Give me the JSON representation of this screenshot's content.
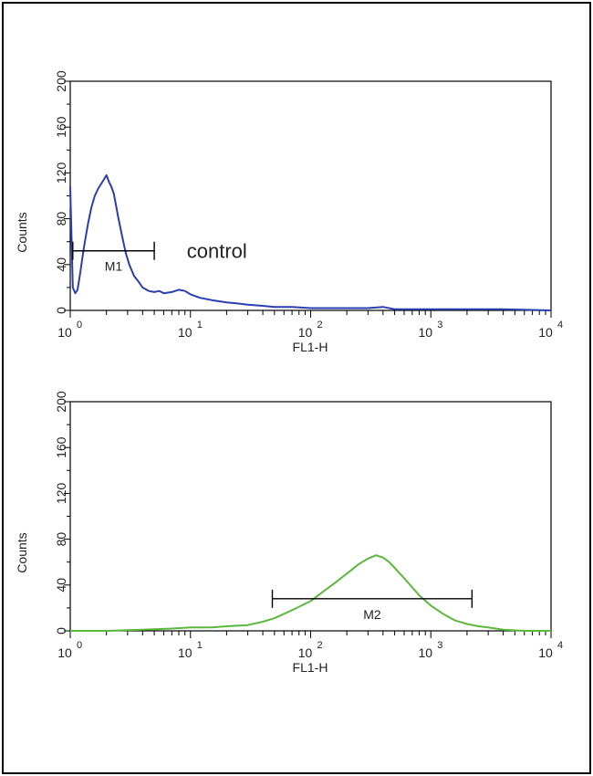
{
  "chart_data": [
    {
      "type": "line",
      "xscale": "log",
      "xlim": [
        1,
        10000
      ],
      "ylim": [
        0,
        200
      ],
      "xlabel": "FL1-H",
      "ylabel": "Counts",
      "x_ticks": [
        {
          "base": "10",
          "exp": "0"
        },
        {
          "base": "10",
          "exp": "1"
        },
        {
          "base": "10",
          "exp": "2"
        },
        {
          "base": "10",
          "exp": "3"
        },
        {
          "base": "10",
          "exp": "4"
        }
      ],
      "y_ticks": [
        "0",
        "40",
        "80",
        "120",
        "160",
        "200"
      ],
      "color": "#2a3fae",
      "series": [
        {
          "x": [
            1.0,
            1.05,
            1.1,
            1.15,
            1.2,
            1.3,
            1.4,
            1.5,
            1.6,
            1.7,
            1.8,
            1.9,
            2.0,
            2.1,
            2.2,
            2.3,
            2.4,
            2.5,
            2.7,
            2.9,
            3.1,
            3.4,
            3.7,
            4.0,
            4.5,
            5.0,
            5.5,
            6.0,
            7.0,
            8.0,
            9.0,
            10,
            12,
            15,
            20,
            25,
            30,
            40,
            50,
            70,
            100,
            150,
            200,
            300,
            400,
            500,
            700,
            1000,
            2000,
            4000,
            10000
          ],
          "y": [
            108,
            20,
            15,
            18,
            30,
            55,
            75,
            90,
            100,
            106,
            110,
            114,
            118,
            112,
            108,
            102,
            92,
            82,
            65,
            50,
            40,
            30,
            25,
            20,
            17,
            16,
            17,
            15,
            16,
            18,
            17,
            14,
            11,
            9,
            7,
            6,
            5,
            4,
            3,
            3,
            2,
            2,
            2,
            2,
            3,
            1,
            1,
            1,
            1,
            1,
            0
          ]
        }
      ],
      "annotations": [
        {
          "label": "M1",
          "x_start": 1.05,
          "x_end": 5.0,
          "y": 52
        },
        {
          "label": "control",
          "x": 10,
          "y": 52
        }
      ]
    },
    {
      "type": "line",
      "xscale": "log",
      "xlim": [
        1,
        10000
      ],
      "ylim": [
        0,
        200
      ],
      "xlabel": "FL1-H",
      "ylabel": "Counts",
      "x_ticks": [
        {
          "base": "10",
          "exp": "0"
        },
        {
          "base": "10",
          "exp": "1"
        },
        {
          "base": "10",
          "exp": "2"
        },
        {
          "base": "10",
          "exp": "3"
        },
        {
          "base": "10",
          "exp": "4"
        }
      ],
      "y_ticks": [
        "0",
        "40",
        "80",
        "120",
        "160",
        "200"
      ],
      "color": "#5cb83c",
      "series": [
        {
          "x": [
            1,
            2,
            4,
            7,
            10,
            15,
            20,
            30,
            40,
            50,
            70,
            100,
            130,
            160,
            200,
            250,
            300,
            350,
            400,
            450,
            500,
            600,
            700,
            800,
            1000,
            1300,
            1600,
            2000,
            2500,
            3000,
            4000,
            6000,
            10000
          ],
          "y": [
            0,
            0,
            1,
            2,
            3,
            3,
            4,
            5,
            8,
            11,
            18,
            26,
            35,
            42,
            50,
            58,
            63,
            66,
            64,
            60,
            55,
            46,
            38,
            31,
            22,
            14,
            9,
            6,
            4,
            3,
            1,
            0,
            0
          ]
        }
      ],
      "annotations": [
        {
          "label": "M2",
          "x_start": 48,
          "x_end": 2200,
          "y": 28
        }
      ]
    }
  ]
}
